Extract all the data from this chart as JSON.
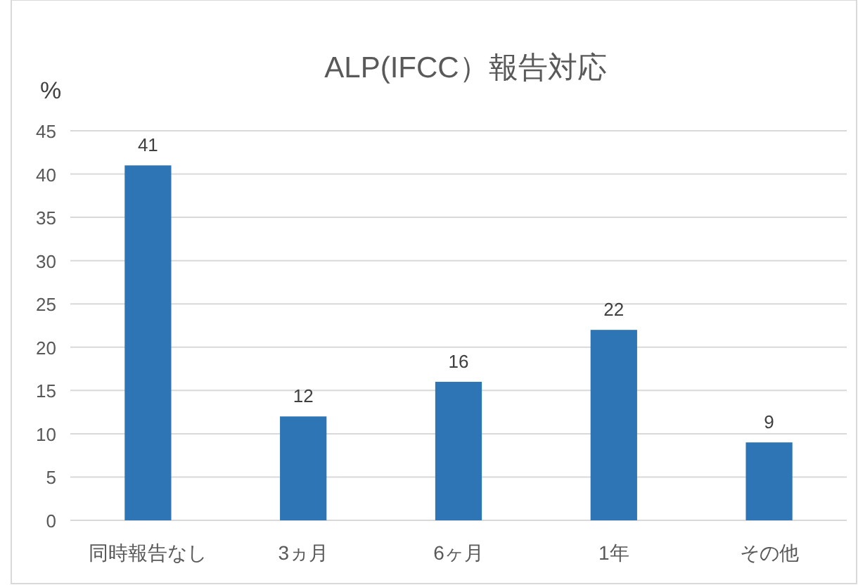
{
  "chart_data": {
    "type": "bar",
    "title": "ALP(IFCC）報告対応",
    "ylabel": "%",
    "categories": [
      "同時報告なし",
      "3ヵ月",
      "6ヶ月",
      "1年",
      "その他"
    ],
    "values": [
      41,
      12,
      16,
      22,
      9
    ],
    "color": "#2e75b6",
    "ylim": [
      0,
      45
    ],
    "yticks": [
      0,
      5,
      10,
      15,
      20,
      25,
      30,
      35,
      40,
      45
    ],
    "grid": "y",
    "data_labels": true
  }
}
